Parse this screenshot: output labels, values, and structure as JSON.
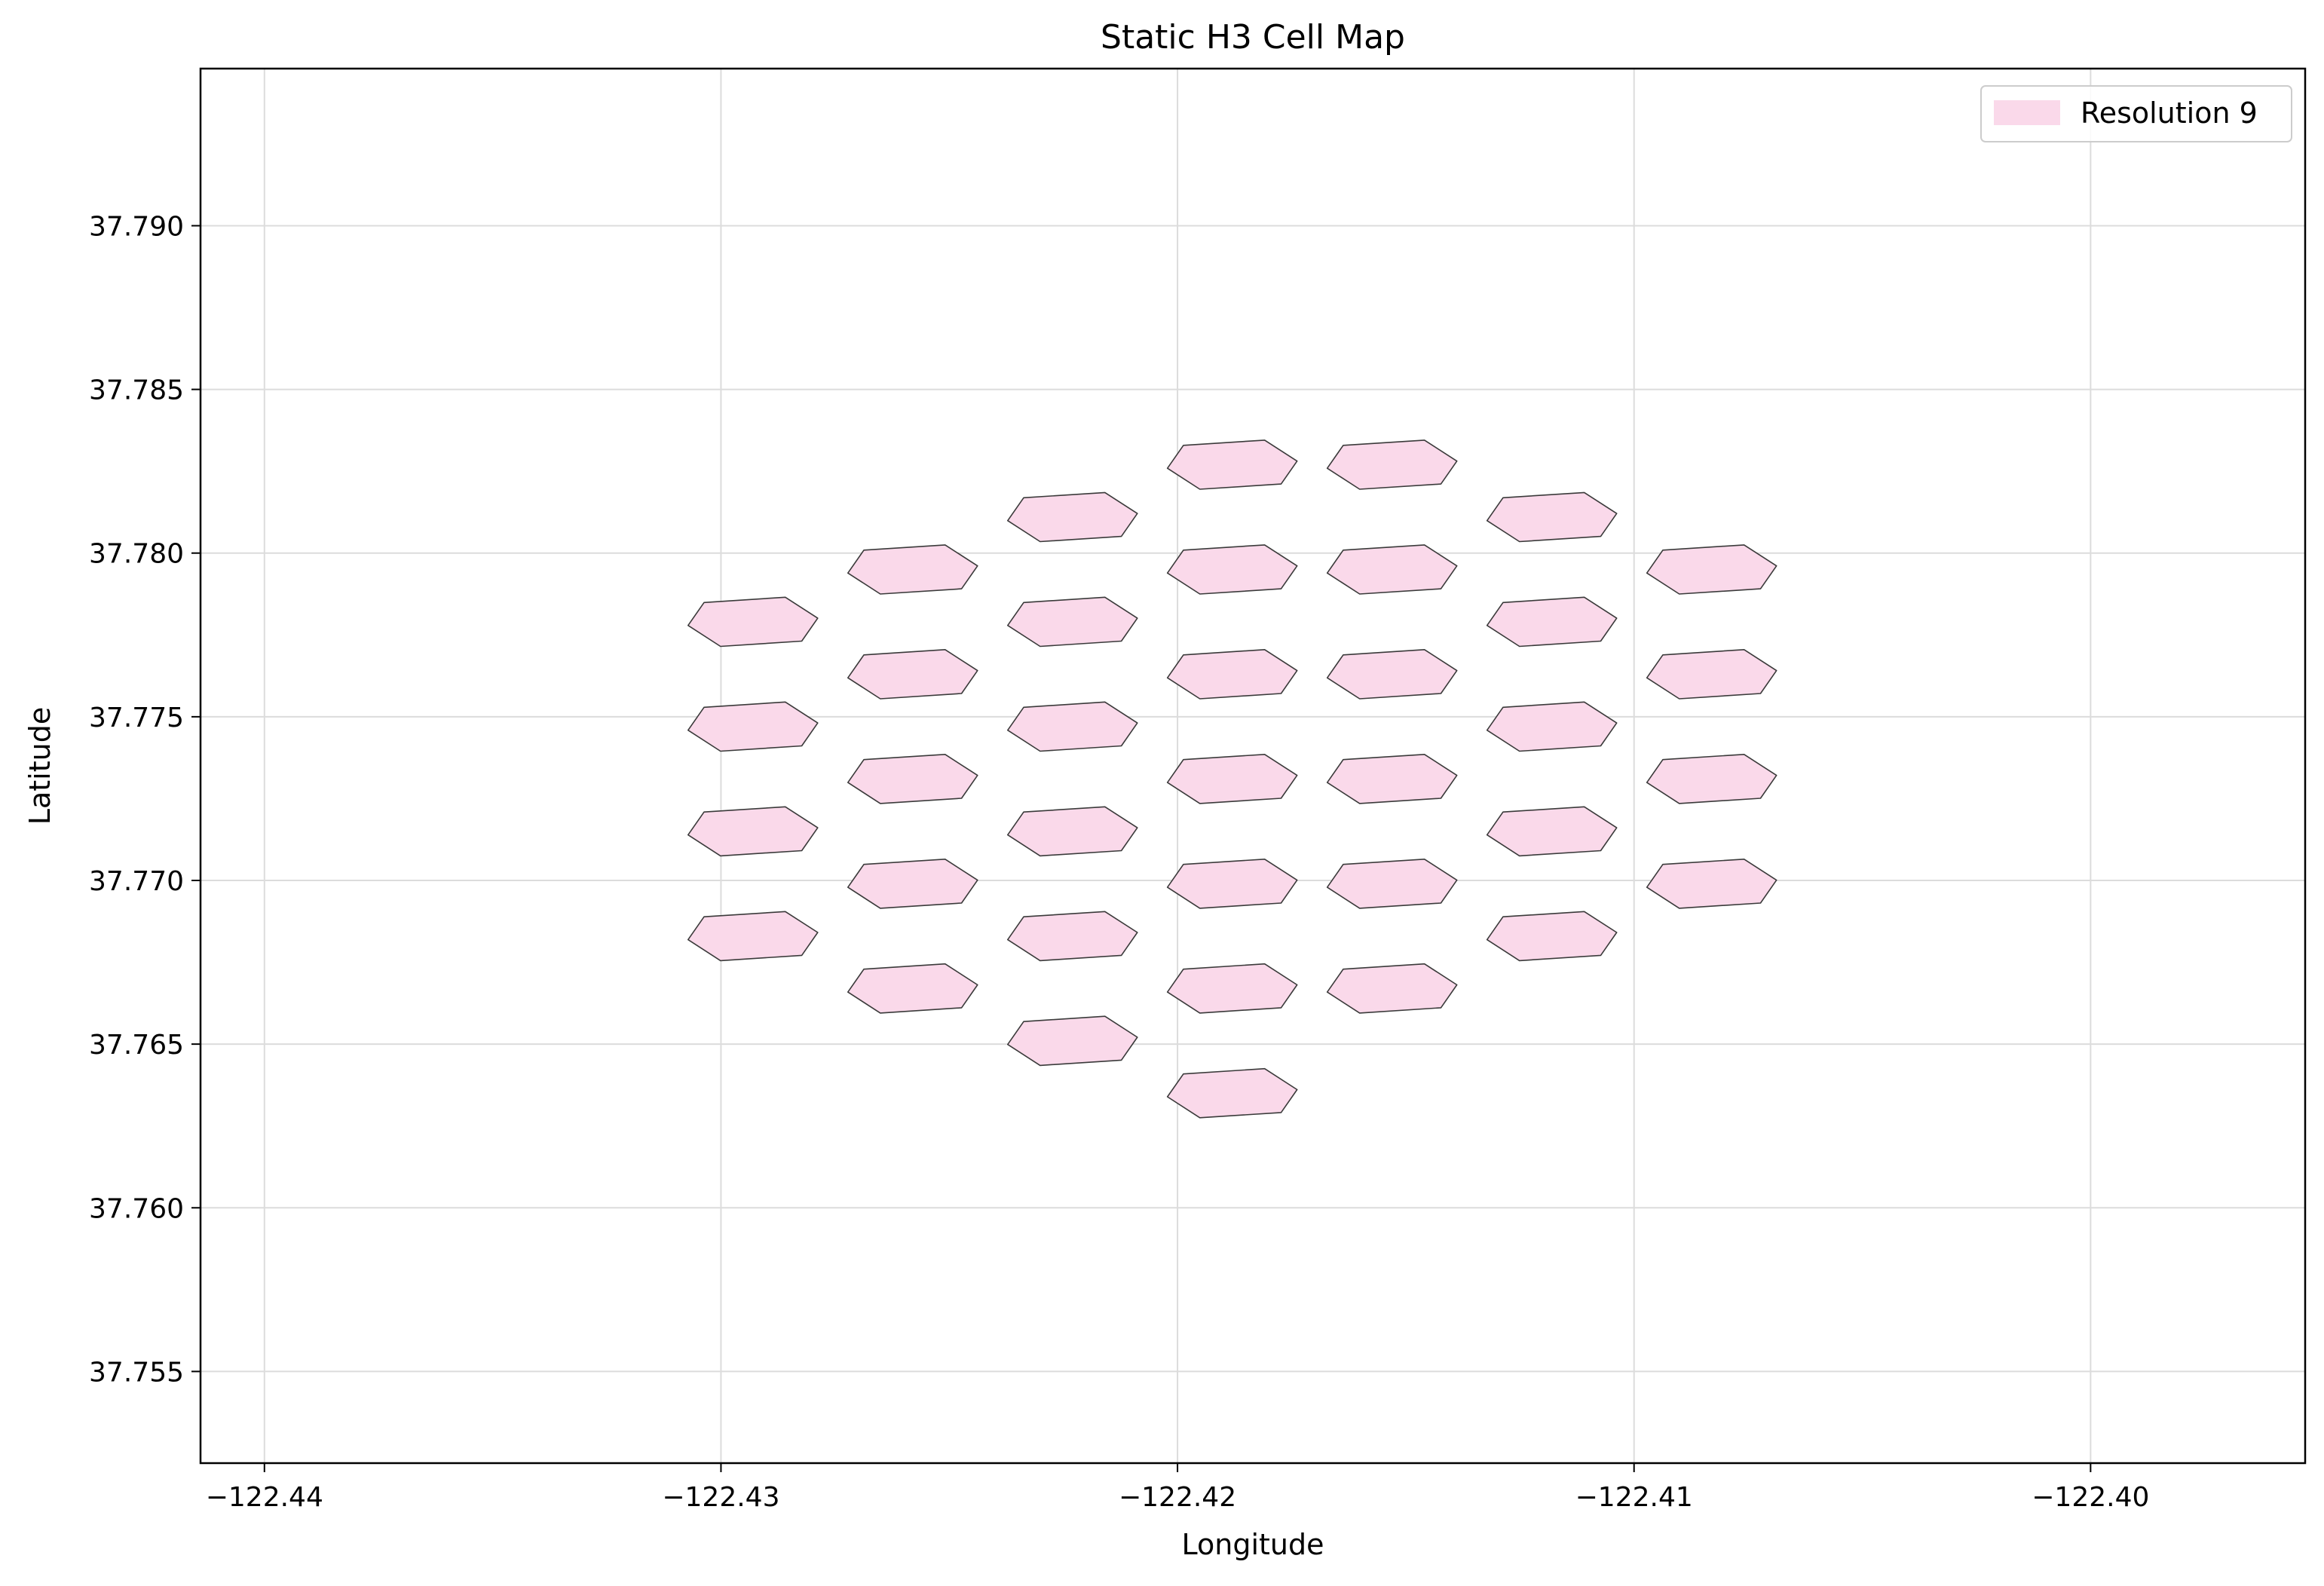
{
  "chart_data": {
    "type": "map",
    "title": "Static H3 Cell Map",
    "xlabel": "Longitude",
    "ylabel": "Latitude",
    "xlim": [
      -122.4414,
      -122.3953
    ],
    "ylim": [
      37.7522,
      37.7948
    ],
    "x_ticks": [
      -122.44,
      -122.43,
      -122.42,
      -122.41,
      -122.4
    ],
    "x_tick_labels": [
      "−122.44",
      "−122.43",
      "−122.42",
      "−122.41",
      "−122.40"
    ],
    "y_ticks": [
      37.755,
      37.76,
      37.765,
      37.77,
      37.775,
      37.78,
      37.785,
      37.79
    ],
    "y_tick_labels": [
      "37.755",
      "37.760",
      "37.765",
      "37.770",
      "37.775",
      "37.780",
      "37.785",
      "37.790"
    ],
    "grid": true,
    "legend_position": "top-right",
    "series": [
      {
        "name": "Resolution 9",
        "fill_color": "#fad9ea",
        "stroke_color": "#3a3a3a",
        "cells": [
          [
            -122.4188,
            37.7635
          ],
          [
            -122.4223,
            37.7651
          ],
          [
            -122.4153,
            37.7667
          ],
          [
            -122.4258,
            37.7667
          ],
          [
            -122.4118,
            37.7683
          ],
          [
            -122.4293,
            37.7683
          ],
          [
            -122.4083,
            37.7699
          ],
          [
            -122.4188,
            37.7667
          ],
          [
            -122.4223,
            37.7683
          ],
          [
            -122.4153,
            37.7699
          ],
          [
            -122.4258,
            37.7699
          ],
          [
            -122.4118,
            37.7715
          ],
          [
            -122.4293,
            37.7715
          ],
          [
            -122.4083,
            37.7731
          ],
          [
            -122.4188,
            37.7699
          ],
          [
            -122.4223,
            37.7715
          ],
          [
            -122.4153,
            37.7731
          ],
          [
            -122.4258,
            37.7731
          ],
          [
            -122.4118,
            37.7747
          ],
          [
            -122.4293,
            37.7747
          ],
          [
            -122.4083,
            37.7763
          ],
          [
            -122.4188,
            37.7731
          ],
          [
            -122.4223,
            37.7747
          ],
          [
            -122.4153,
            37.7763
          ],
          [
            -122.4258,
            37.7763
          ],
          [
            -122.4118,
            37.7779
          ],
          [
            -122.4293,
            37.7779
          ],
          [
            -122.4083,
            37.7795
          ],
          [
            -122.4188,
            37.7763
          ],
          [
            -122.4223,
            37.7779
          ],
          [
            -122.4153,
            37.7795
          ],
          [
            -122.4258,
            37.7795
          ],
          [
            -122.4118,
            37.7811
          ],
          [
            -122.4188,
            37.7795
          ],
          [
            -122.4223,
            37.7811
          ],
          [
            -122.4153,
            37.7827
          ],
          [
            -122.4188,
            37.7827
          ]
        ]
      }
    ]
  }
}
